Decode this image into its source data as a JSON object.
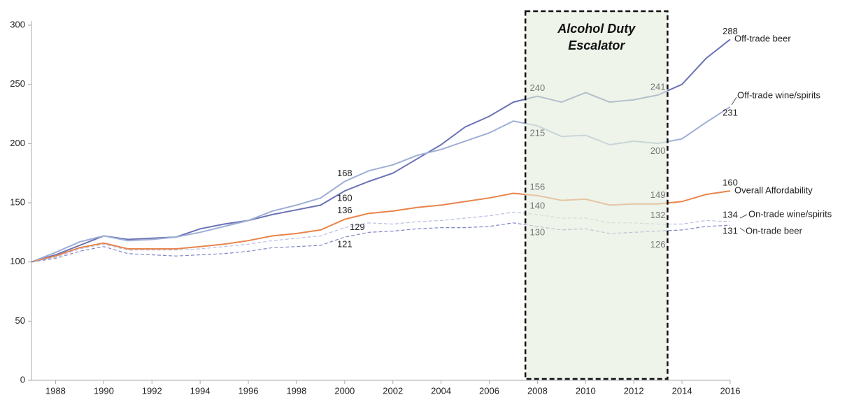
{
  "chart_data": {
    "type": "line",
    "x": [
      1987,
      1988,
      1989,
      1990,
      1991,
      1992,
      1993,
      1994,
      1995,
      1996,
      1997,
      1998,
      1999,
      2000,
      2001,
      2002,
      2003,
      2004,
      2005,
      2006,
      2007,
      2008,
      2009,
      2010,
      2011,
      2012,
      2013,
      2014,
      2015,
      2016
    ],
    "xlim": [
      1987,
      2016
    ],
    "xticks": [
      1988,
      1990,
      1992,
      1994,
      1996,
      1998,
      2000,
      2002,
      2004,
      2006,
      2008,
      2010,
      2012,
      2014,
      2016
    ],
    "ylim": [
      0,
      300
    ],
    "yticks": [
      0,
      50,
      100,
      150,
      200,
      250,
      300
    ],
    "grid": false,
    "annotation": {
      "text": [
        "Alcohol Duty",
        "Escalator"
      ],
      "start": 2007.5,
      "end": 2013.4
    },
    "series": [
      {
        "name": "Off-trade beer",
        "color": "#6a73b5",
        "dashed": false,
        "values": [
          100,
          106,
          114,
          122,
          119,
          120,
          121,
          128,
          132,
          135,
          140,
          144,
          148,
          160,
          168,
          175,
          187,
          199,
          214,
          223,
          235,
          240,
          235,
          243,
          235,
          237,
          241,
          250,
          272,
          288
        ],
        "value_labels": [
          null,
          null,
          null,
          null,
          null,
          null,
          null,
          null,
          null,
          null,
          null,
          null,
          null,
          "160",
          null,
          null,
          null,
          null,
          null,
          null,
          null,
          "240",
          null,
          null,
          null,
          null,
          "241",
          null,
          null,
          "288"
        ]
      },
      {
        "name": "Off-trade wine/spirits",
        "color": "#9eaed6",
        "dashed": false,
        "values": [
          100,
          108,
          117,
          122,
          118,
          119,
          121,
          125,
          130,
          135,
          143,
          148,
          154,
          168,
          177,
          182,
          190,
          195,
          202,
          209,
          219,
          215,
          206,
          207,
          199,
          202,
          200,
          204,
          218,
          231
        ],
        "value_labels": [
          null,
          null,
          null,
          null,
          null,
          null,
          null,
          null,
          null,
          null,
          null,
          null,
          null,
          "168",
          null,
          null,
          null,
          null,
          null,
          null,
          null,
          "215",
          null,
          null,
          null,
          null,
          "200",
          null,
          null,
          "231"
        ]
      },
      {
        "name": "Overall Affordability",
        "color": "#e8844a",
        "dashed": false,
        "values": [
          100,
          105,
          112,
          116,
          111,
          111,
          111,
          113,
          115,
          118,
          122,
          124,
          127,
          136,
          141,
          143,
          146,
          148,
          151,
          154,
          158,
          156,
          152,
          153,
          148,
          149,
          149,
          151,
          157,
          160
        ],
        "value_labels": [
          null,
          null,
          null,
          null,
          null,
          null,
          null,
          null,
          null,
          null,
          null,
          null,
          null,
          "136",
          null,
          null,
          null,
          null,
          null,
          null,
          null,
          "156",
          null,
          null,
          null,
          null,
          "149",
          null,
          null,
          "160"
        ]
      },
      {
        "name": "On-trade wine/spirits",
        "color": "#b7bfe2",
        "dashed": true,
        "values": [
          100,
          104,
          111,
          115,
          110,
          110,
          110,
          111,
          113,
          115,
          118,
          120,
          122,
          129,
          133,
          132,
          134,
          135,
          137,
          139,
          142,
          140,
          137,
          137,
          133,
          133,
          132,
          132,
          135,
          134
        ],
        "value_labels": [
          null,
          null,
          null,
          null,
          null,
          null,
          null,
          null,
          null,
          null,
          null,
          null,
          null,
          "129",
          null,
          null,
          null,
          null,
          null,
          null,
          null,
          "140",
          null,
          null,
          null,
          null,
          "132",
          null,
          null,
          "134"
        ]
      },
      {
        "name": "On-trade beer",
        "color": "#7f86c6",
        "dashed": true,
        "values": [
          100,
          103,
          109,
          113,
          107,
          106,
          105,
          106,
          107,
          109,
          112,
          113,
          114,
          121,
          125,
          126,
          128,
          129,
          129,
          130,
          133,
          130,
          127,
          128,
          124,
          125,
          126,
          127,
          130,
          131
        ],
        "value_labels": [
          null,
          null,
          null,
          null,
          null,
          null,
          null,
          null,
          null,
          null,
          null,
          null,
          null,
          "121",
          null,
          null,
          null,
          null,
          null,
          null,
          null,
          "130",
          null,
          null,
          null,
          null,
          "126",
          null,
          null,
          "131"
        ]
      }
    ]
  }
}
